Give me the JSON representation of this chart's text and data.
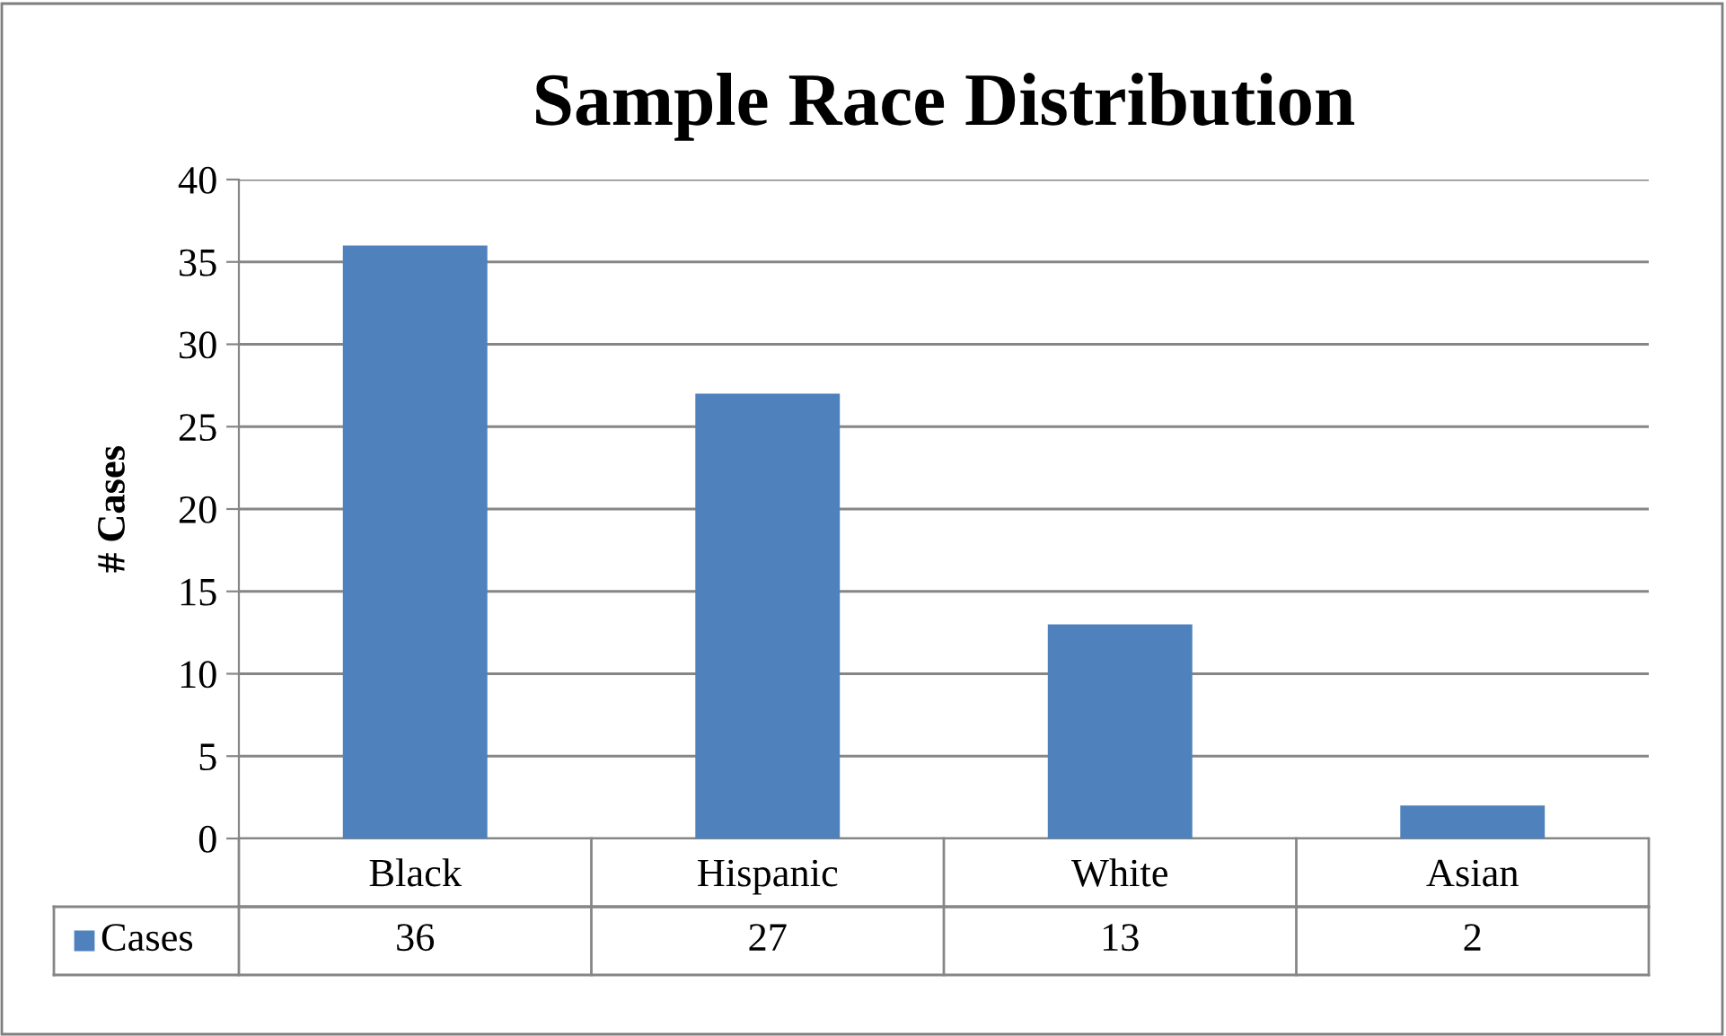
{
  "chart_data": {
    "type": "bar",
    "title": "Sample Race Distribution",
    "ylabel": "# Cases",
    "categories": [
      "Black",
      "Hispanic",
      "White",
      "Asian"
    ],
    "series": [
      {
        "name": "Cases",
        "color": "#4f81bd",
        "values": [
          36,
          27,
          13,
          2
        ]
      }
    ],
    "ylim": [
      0,
      40
    ],
    "yticks": [
      0,
      5,
      10,
      15,
      20,
      25,
      30,
      35,
      40
    ],
    "grid": "y",
    "data_labels": true,
    "legend": "bottom"
  }
}
